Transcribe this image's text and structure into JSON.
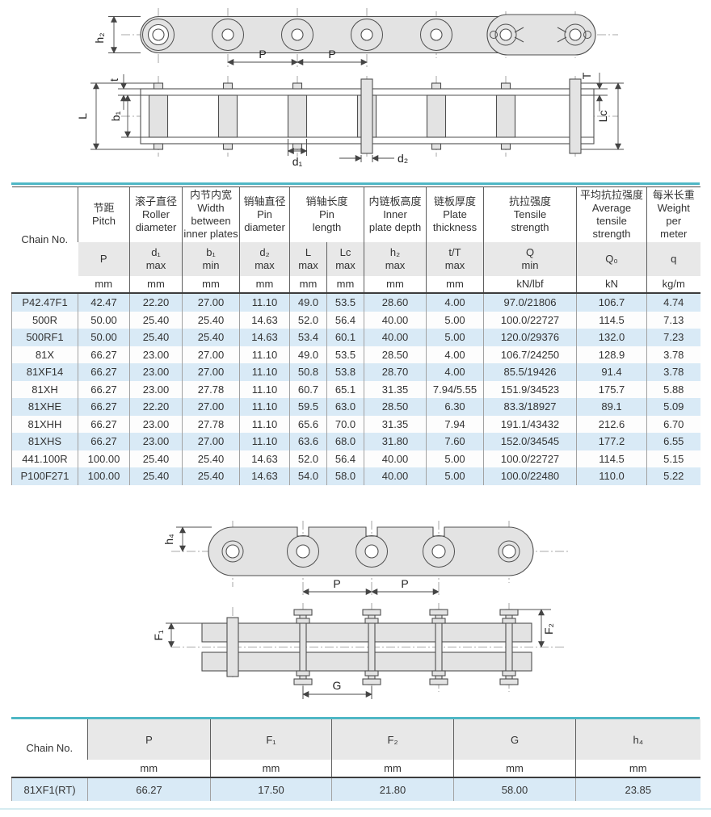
{
  "colors": {
    "accent_teal": "#4fb7c5",
    "row_highlight": "#d9eaf6",
    "header_band": "#e8e8e8"
  },
  "diagram1": {
    "plan": {
      "h2": "h₂",
      "p1": "P",
      "p2": "P"
    },
    "side": {
      "t": "t",
      "L": "L",
      "b1": "b₁",
      "d1": "d₁",
      "d2": "d₂",
      "T": "T",
      "Lc": "Lc"
    }
  },
  "diagram2": {
    "plan": {
      "h4": "h₄",
      "p1": "P",
      "p2": "P"
    },
    "side": {
      "F1": "F₁",
      "F2": "F₂",
      "G": "G"
    }
  },
  "spec_table": {
    "chain_no_label": "Chain No.",
    "titles": [
      "节距\nPitch",
      "滚子直径\nRoller\ndiameter",
      "内节内宽\nWidth\nbetween\ninner plates",
      "销轴直径\nPin\ndiameter",
      "销轴长度\nPin\nlength",
      "内链板高度\nInner\nplate depth",
      "链板厚度\nPlate\nthickness",
      "抗拉强度\nTensile\nstrength",
      "平均抗拉强度\nAverage\ntensile\nstrength",
      "每米长重\nWeight\nper\nmeter"
    ],
    "symbols": [
      "P",
      "d₁\nmax",
      "b₁\nmin",
      "d₂\nmax",
      "L\nmax",
      "Lc\nmax",
      "h₂\nmax",
      "t/T\nmax",
      "Q\nmin",
      "Q₀",
      "q"
    ],
    "units": [
      "mm",
      "mm",
      "mm",
      "mm",
      "mm",
      "mm",
      "mm",
      "mm",
      "kN/lbf",
      "kN",
      "kg/m"
    ],
    "rows": [
      [
        "P42.47F1",
        "42.47",
        "22.20",
        "27.00",
        "11.10",
        "49.0",
        "53.5",
        "28.60",
        "4.00",
        "97.0/21806",
        "106.7",
        "4.74"
      ],
      [
        "500R",
        "50.00",
        "25.40",
        "25.40",
        "14.63",
        "52.0",
        "56.4",
        "40.00",
        "5.00",
        "100.0/22727",
        "114.5",
        "7.13"
      ],
      [
        "500RF1",
        "50.00",
        "25.40",
        "25.40",
        "14.63",
        "53.4",
        "60.1",
        "40.00",
        "5.00",
        "120.0/29376",
        "132.0",
        "7.23"
      ],
      [
        "81X",
        "66.27",
        "23.00",
        "27.00",
        "11.10",
        "49.0",
        "53.5",
        "28.50",
        "4.00",
        "106.7/24250",
        "128.9",
        "3.78"
      ],
      [
        "81XF14",
        "66.27",
        "23.00",
        "27.00",
        "11.10",
        "50.8",
        "53.8",
        "28.70",
        "4.00",
        "85.5/19426",
        "91.4",
        "3.78"
      ],
      [
        "81XH",
        "66.27",
        "23.00",
        "27.78",
        "11.10",
        "60.7",
        "65.1",
        "31.35",
        "7.94/5.55",
        "151.9/34523",
        "175.7",
        "5.88"
      ],
      [
        "81XHE",
        "66.27",
        "22.20",
        "27.00",
        "11.10",
        "59.5",
        "63.0",
        "28.50",
        "6.30",
        "83.3/18927",
        "89.1",
        "5.09"
      ],
      [
        "81XHH",
        "66.27",
        "23.00",
        "27.78",
        "11.10",
        "65.6",
        "70.0",
        "31.35",
        "7.94",
        "191.1/43432",
        "212.6",
        "6.70"
      ],
      [
        "81XHS",
        "66.27",
        "23.00",
        "27.00",
        "11.10",
        "63.6",
        "68.0",
        "31.80",
        "7.60",
        "152.0/34545",
        "177.2",
        "6.55"
      ],
      [
        "441.100R",
        "100.00",
        "25.40",
        "25.40",
        "14.63",
        "52.0",
        "56.4",
        "40.00",
        "5.00",
        "100.0/22727",
        "114.5",
        "5.15"
      ],
      [
        "P100F271",
        "100.00",
        "25.40",
        "25.40",
        "14.63",
        "54.0",
        "58.0",
        "40.00",
        "5.00",
        "100.0/22480",
        "110.0",
        "5.22"
      ]
    ]
  },
  "attachment_table": {
    "chain_no_label": "Chain No.",
    "headers": [
      "P",
      "F₁",
      "F₂",
      "G",
      "h₄"
    ],
    "units": [
      "mm",
      "mm",
      "mm",
      "mm",
      "mm"
    ],
    "rows": [
      [
        "81XF1(RT)",
        "66.27",
        "17.50",
        "21.80",
        "58.00",
        "23.85"
      ]
    ]
  }
}
